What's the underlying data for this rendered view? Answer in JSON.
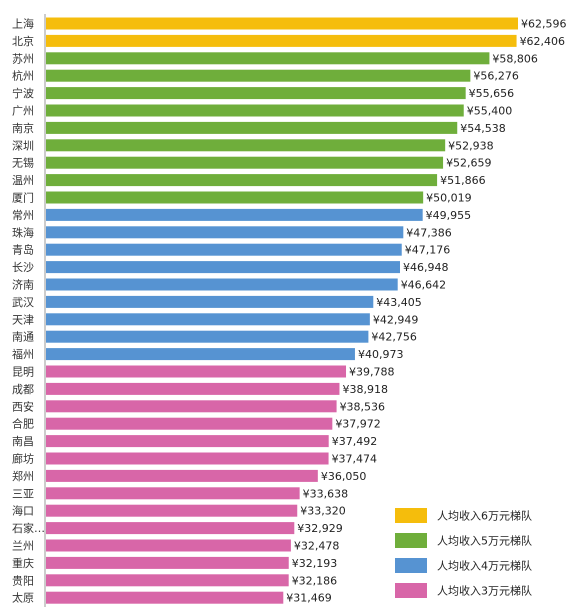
{
  "chart_data": {
    "type": "bar",
    "orientation": "horizontal",
    "grid": false,
    "legend_position": "bottom-right",
    "categories": [
      "上海",
      "北京",
      "苏州",
      "杭州",
      "宁波",
      "广州",
      "南京",
      "深圳",
      "无锡",
      "温州",
      "厦门",
      "常州",
      "珠海",
      "青岛",
      "长沙",
      "济南",
      "武汉",
      "天津",
      "南通",
      "福州",
      "昆明",
      "成都",
      "西安",
      "合肥",
      "南昌",
      "廊坊",
      "郑州",
      "三亚",
      "海口",
      "石家…",
      "兰州",
      "重庆",
      "贵阳",
      "太原"
    ],
    "values": [
      62596,
      62406,
      58806,
      56276,
      55656,
      55400,
      54538,
      52938,
      52659,
      51866,
      50019,
      49955,
      47386,
      47176,
      46948,
      46642,
      43405,
      42949,
      42756,
      40973,
      39788,
      38918,
      38536,
      37972,
      37492,
      37474,
      36050,
      33638,
      33320,
      32929,
      32478,
      32193,
      32186,
      31469
    ],
    "labels": [
      "¥62,596",
      "¥62,406",
      "¥58,806",
      "¥56,276",
      "¥55,656",
      "¥55,400",
      "¥54,538",
      "¥52,938",
      "¥52,659",
      "¥51,866",
      "¥50,019",
      "¥49,955",
      "¥47,386",
      "¥47,176",
      "¥46,948",
      "¥46,642",
      "¥43,405",
      "¥42,949",
      "¥42,756",
      "¥40,973",
      "¥39,788",
      "¥38,918",
      "¥38,536",
      "¥37,972",
      "¥37,492",
      "¥37,474",
      "¥36,050",
      "¥33,638",
      "¥33,320",
      "¥32,929",
      "¥32,478",
      "¥32,193",
      "¥32,186",
      "¥31,469"
    ],
    "tiers": [
      0,
      0,
      1,
      1,
      1,
      1,
      1,
      1,
      1,
      1,
      1,
      2,
      2,
      2,
      2,
      2,
      2,
      2,
      2,
      2,
      3,
      3,
      3,
      3,
      3,
      3,
      3,
      3,
      3,
      3,
      3,
      3,
      3,
      3
    ],
    "legend": [
      {
        "name": "人均收入6万元梯队",
        "color": "#f5bd0c"
      },
      {
        "name": "人均收入5万元梯队",
        "color": "#6fae3b"
      },
      {
        "name": "人均收入4万元梯队",
        "color": "#5693d2"
      },
      {
        "name": "人均收入3万元梯队",
        "color": "#d866a8"
      }
    ],
    "xlim": [
      0,
      62596
    ]
  }
}
